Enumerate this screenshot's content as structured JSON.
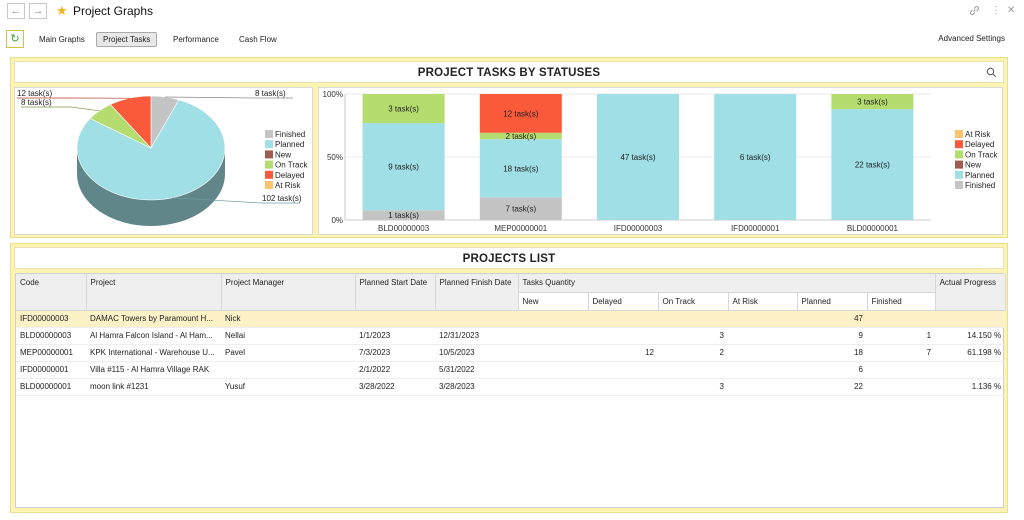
{
  "header": {
    "back_icon": "arrow-left-icon",
    "forward_icon": "arrow-right-icon",
    "back_glyph": "←",
    "forward_glyph": "→",
    "star_icon": "star-icon",
    "star_glyph": "★",
    "title": "Project Graphs",
    "link_icon": "link-icon",
    "link_glyph": "🔗",
    "more_icon": "more-vertical-icon",
    "more_glyph": "⋮",
    "close_icon": "close-icon",
    "close_glyph": "✕"
  },
  "toolbar": {
    "refresh_icon": "refresh-icon",
    "refresh_glyph": "↻",
    "tabs": [
      {
        "label": "Main Graphs",
        "active": false
      },
      {
        "label": "Project Tasks",
        "active": true
      },
      {
        "label": "Performance",
        "active": false
      },
      {
        "label": "Cash Flow",
        "active": false
      }
    ],
    "advanced_settings": "Advanced Settings"
  },
  "status_panel": {
    "title": "PROJECT TASKS BY STATUSES",
    "search_glyph": "⌕",
    "search_icon": "search-icon"
  },
  "colors": {
    "finished": "#c4c4c4",
    "planned": "#a0dfe6",
    "new": "#9e5b50",
    "on_track": "#b5dc6e",
    "delayed": "#fa5a3a",
    "at_risk": "#f9c46b",
    "accent": "#f2b61d"
  },
  "chart_data": [
    {
      "type": "pie",
      "labels": [
        "Finished",
        "Planned",
        "New",
        "On Track",
        "Delayed",
        "At Risk"
      ],
      "values": [
        8,
        102,
        0,
        8,
        12,
        0
      ],
      "slice_labels": [
        "8 task(s)",
        "102 task(s)",
        "",
        "8 task(s)",
        "12 task(s)",
        ""
      ],
      "legend": [
        "Finished",
        "Planned",
        "New",
        "On Track",
        "Delayed",
        "At Risk"
      ],
      "legend_placement": "right"
    },
    {
      "type": "bar",
      "stacked": "percent",
      "categories": [
        "BLD00000003",
        "MEP00000001",
        "IFD00000003",
        "IFD00000001",
        "BLD00000001"
      ],
      "series": [
        {
          "name": "Finished",
          "values": [
            1,
            7,
            0,
            0,
            0
          ],
          "labels": [
            "1 task(s)",
            "7 task(s)",
            "",
            "",
            ""
          ]
        },
        {
          "name": "Planned",
          "values": [
            9,
            18,
            47,
            6,
            22
          ],
          "labels": [
            "9 task(s)",
            "18 task(s)",
            "47 task(s)",
            "6 task(s)",
            "22 task(s)"
          ]
        },
        {
          "name": "New",
          "values": [
            0,
            0,
            0,
            0,
            0
          ],
          "labels": [
            "",
            "",
            "",
            "",
            ""
          ]
        },
        {
          "name": "On Track",
          "values": [
            3,
            2,
            0,
            0,
            3
          ],
          "labels": [
            "3 task(s)",
            "2 task(s)",
            "",
            "",
            "3 task(s)"
          ]
        },
        {
          "name": "Delayed",
          "values": [
            0,
            12,
            0,
            0,
            0
          ],
          "labels": [
            "",
            "12 task(s)",
            "",
            "",
            ""
          ]
        },
        {
          "name": "At Risk",
          "values": [
            0,
            0,
            0,
            0,
            0
          ],
          "labels": [
            "",
            "",
            "",
            "",
            ""
          ]
        }
      ],
      "y_ticks": [
        "0%",
        "50%",
        "100%"
      ],
      "ylim": [
        0,
        100
      ],
      "legend": [
        "At Risk",
        "Delayed",
        "On Track",
        "New",
        "Planned",
        "Finished"
      ],
      "legend_placement": "right",
      "grid": true
    }
  ],
  "projects_list": {
    "title": "PROJECTS LIST",
    "columns": {
      "code": "Code",
      "project": "Project",
      "manager": "Project Manager",
      "start": "Planned Start Date",
      "finish": "Planned Finish Date",
      "tasks_quantity": "Tasks Quantity",
      "new": "New",
      "delayed": "Delayed",
      "on_track": "On Track",
      "at_risk": "At Risk",
      "planned": "Planned",
      "finished": "Finished",
      "progress": "Actual Progress"
    },
    "rows": [
      {
        "code": "IFD00000003",
        "project": "DAMAC Towers by Paramount H...",
        "manager": "Nick",
        "start": "",
        "finish": "",
        "new": "",
        "delayed": "",
        "on_track": "",
        "at_risk": "",
        "planned": "47",
        "finished": "",
        "progress": ""
      },
      {
        "code": "BLD00000003",
        "project": "Al Hamra Falcon Island - Al Ham...",
        "manager": "Nellai",
        "start": "1/1/2023",
        "finish": "12/31/2023",
        "new": "",
        "delayed": "",
        "on_track": "3",
        "at_risk": "",
        "planned": "9",
        "finished": "1",
        "progress": "14.150 %"
      },
      {
        "code": "MEP00000001",
        "project": "KPK International - Warehouse U...",
        "manager": "Pavel",
        "start": "7/3/2023",
        "finish": "10/5/2023",
        "new": "",
        "delayed": "12",
        "on_track": "2",
        "at_risk": "",
        "planned": "18",
        "finished": "7",
        "progress": "61.198 %"
      },
      {
        "code": "IFD00000001",
        "project": "Villa #115 - Al Hamra Village RAK",
        "manager": "",
        "start": "2/1/2022",
        "finish": "5/31/2022",
        "new": "",
        "delayed": "",
        "on_track": "",
        "at_risk": "",
        "planned": "6",
        "finished": "",
        "progress": ""
      },
      {
        "code": "BLD00000001",
        "project": "moon link #1231",
        "manager": "Yusuf",
        "start": "3/28/2022",
        "finish": "3/28/2023",
        "new": "",
        "delayed": "",
        "on_track": "3",
        "at_risk": "",
        "planned": "22",
        "finished": "",
        "progress": "1.136 %"
      }
    ]
  }
}
